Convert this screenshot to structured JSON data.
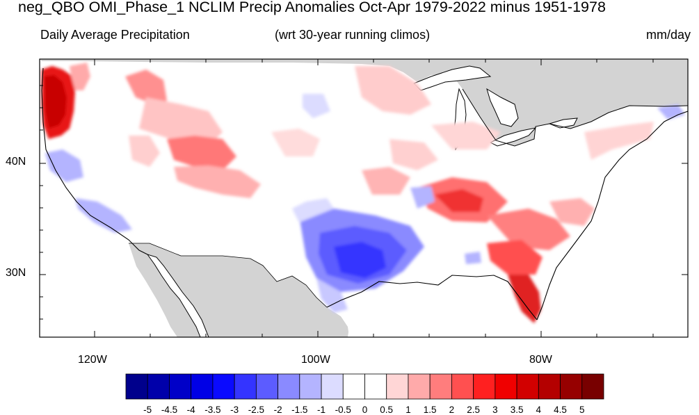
{
  "title": "neg_QBO OMI_Phase_1 NCLIM Precip Anomalies Oct-Apr 1979-2022 minus 1951-1978",
  "subtitle_left": "Daily Average Precipitation",
  "subtitle_center": "(wrt 30-year running climos)",
  "subtitle_right": "mm/day",
  "axes": {
    "lat_labels": [
      "40N",
      "30N"
    ],
    "lon_labels": [
      "120W",
      "100W",
      "80W"
    ]
  },
  "colorbar": {
    "labels": [
      "-5",
      "-4.5",
      "-4",
      "-3.5",
      "-3",
      "-2.5",
      "-2",
      "-1.5",
      "-1",
      "-0.5",
      "0",
      "0.5",
      "1",
      "1.5",
      "2",
      "2.5",
      "3",
      "3.5",
      "4",
      "4.5",
      "5"
    ],
    "colors": [
      "#00008c",
      "#0000aa",
      "#0000c8",
      "#0000e6",
      "#0a0aff",
      "#3434ff",
      "#5c5cff",
      "#8a8aff",
      "#b4b4ff",
      "#dcdcff",
      "#ffffff",
      "#ffffff",
      "#ffd6d6",
      "#ffaaaa",
      "#ff7d7d",
      "#ff5050",
      "#ff2020",
      "#f00000",
      "#d20000",
      "#b40000",
      "#960000",
      "#780000"
    ]
  },
  "map_colors": {
    "land": "#ffffff",
    "nodata": "#d3d3d3",
    "ocean": "#ffffff",
    "coast": "#000000"
  }
}
